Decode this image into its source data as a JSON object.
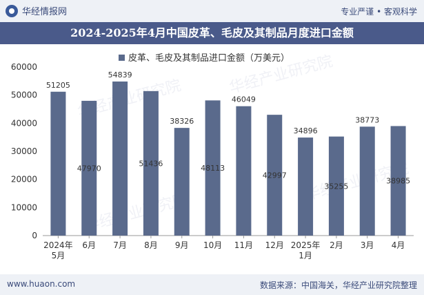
{
  "header": {
    "logo_text": "华经情报网",
    "tagline": "专业严谨 • 客观科学"
  },
  "title": "2024-2025年4月中国皮革、毛皮及其制品月度进口金额",
  "footer": {
    "left": "www.huaon.com",
    "right": "数据来源：中国海关，华经产业研究院整理"
  },
  "watermark": "华经产业研究院",
  "colors": {
    "bar": "#5a6a8c",
    "title_bg": "#4a5a8a",
    "band_bg": "#eef1f6"
  },
  "chart_data": {
    "type": "bar",
    "categories": [
      [
        "2024年",
        "5月"
      ],
      [
        "6月"
      ],
      [
        "7月"
      ],
      [
        "8月"
      ],
      [
        "9月"
      ],
      [
        "10月"
      ],
      [
        "11月"
      ],
      [
        "12月"
      ],
      [
        "2025年",
        "1月"
      ],
      [
        "2月"
      ],
      [
        "3月"
      ],
      [
        "4月"
      ]
    ],
    "series": [
      {
        "name": "皮革、毛皮及其制品进口金额（万美元）",
        "values": [
          51205,
          47970,
          54839,
          51436,
          38326,
          48113,
          46049,
          42997,
          34896,
          35255,
          38773,
          38985
        ]
      }
    ],
    "label_position": [
      "top",
      "inside",
      "top",
      "inside",
      "top",
      "inside",
      "top",
      "inside",
      "top",
      "inside",
      "top",
      "inside"
    ],
    "ylim": [
      0,
      60000
    ],
    "yticks": [
      0,
      10000,
      20000,
      30000,
      40000,
      50000,
      60000
    ],
    "legend_position": "top-center"
  }
}
